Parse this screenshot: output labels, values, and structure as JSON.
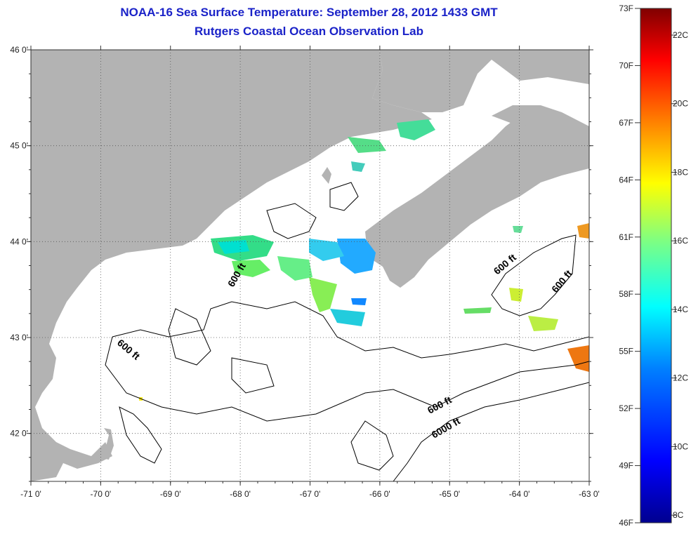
{
  "title": "NOAA-16 Sea Surface Temperature:  September 28, 2012 1433 GMT",
  "subtitle": "Rutgers Coastal Ocean Observation Lab",
  "map": {
    "lon_ticks": [
      "-71 0'",
      "-70 0'",
      "-69 0'",
      "-68 0'",
      "-67 0'",
      "-66 0'",
      "-65 0'",
      "-64 0'",
      "-63 0'"
    ],
    "lat_ticks": [
      "46 0'",
      "45 0'",
      "44 0'",
      "43 0'",
      "42 0'"
    ],
    "lon_range": [
      -71,
      -63
    ],
    "lat_range": [
      41.5,
      46
    ],
    "colors": {
      "land": "#b3b3b3",
      "water": "#ffffff",
      "contour": "#000000",
      "grid": "#555555"
    },
    "contour_labels": [
      "600 ft",
      "600 ft",
      "600 ft",
      "600 ft",
      "6000 ft"
    ]
  },
  "colorbar": {
    "f_labels": [
      "73F",
      "70F",
      "67F",
      "64F",
      "61F",
      "58F",
      "55F",
      "52F",
      "49F",
      "46F"
    ],
    "c_labels": [
      "22C",
      "20C",
      "18C",
      "16C",
      "14C",
      "12C",
      "10C",
      "8C"
    ],
    "stops": [
      "#00008f",
      "#0000ff",
      "#0080ff",
      "#00ffff",
      "#80ff80",
      "#ffff00",
      "#ff8000",
      "#ff0000",
      "#800000"
    ]
  }
}
